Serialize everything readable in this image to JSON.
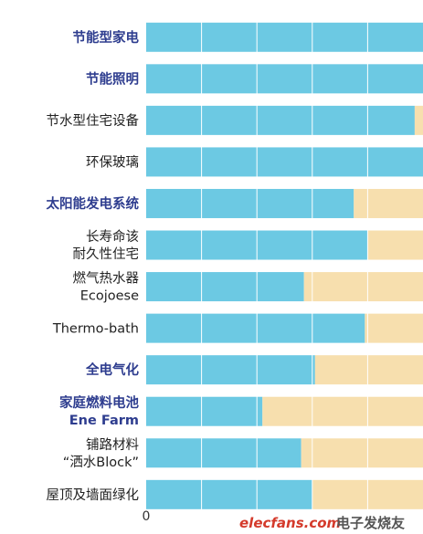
{
  "chart_data": {
    "type": "bar",
    "orientation": "horizontal",
    "stacked": true,
    "categories": [
      {
        "lines": [
          "节能型家电"
        ],
        "highlight": true
      },
      {
        "lines": [
          "节能照明"
        ],
        "highlight": true
      },
      {
        "lines": [
          "节水型住宅设备"
        ],
        "highlight": false
      },
      {
        "lines": [
          "环保玻璃"
        ],
        "highlight": false
      },
      {
        "lines": [
          "太阳能发电系统"
        ],
        "highlight": true
      },
      {
        "lines": [
          "长寿命该",
          "耐久性住宅"
        ],
        "highlight": false
      },
      {
        "lines": [
          "燃气热水器",
          "Ecojoese"
        ],
        "highlight": false
      },
      {
        "lines": [
          "Thermo-bath"
        ],
        "highlight": false
      },
      {
        "lines": [
          "全电气化"
        ],
        "highlight": true
      },
      {
        "lines": [
          "家庭燃料电池",
          "Ene Farm"
        ],
        "highlight": true
      },
      {
        "lines": [
          "铺路材料",
          "“洒水Block”"
        ],
        "highlight": false
      },
      {
        "lines": [
          "屋顶及墙面绿化"
        ],
        "highlight": false
      }
    ],
    "series": [
      {
        "values": [
          100,
          100,
          97,
          100,
          75,
          80,
          57,
          79,
          61,
          42,
          56,
          60
        ],
        "color": "#6cc9e3"
      },
      {
        "values": [
          0,
          0,
          3,
          0,
          25,
          20,
          43,
          21,
          39,
          58,
          44,
          40
        ],
        "color": "#f7dfae"
      }
    ],
    "x_ticks": [
      "0"
    ],
    "xlim": [
      0,
      100
    ],
    "grid": true,
    "gridline_color": "#ffffff",
    "label_highlight_color": "#2e3d8f",
    "label_color": "#222222"
  },
  "watermark": {
    "site": "elecfans.com",
    "cn_text": "电子发烧友",
    "site_color": "#d43a2b",
    "cn_color": "#555555"
  }
}
